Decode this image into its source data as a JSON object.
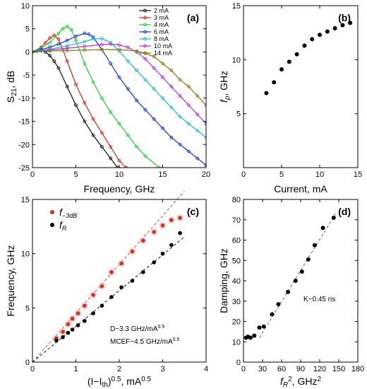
{
  "chart_data": [
    {
      "id": "a",
      "type": "line",
      "panel_label": "(a)",
      "xlabel": "Frequency, GHz",
      "ylabel": "S",
      "ylabel_sub": "21",
      "ylabel_tail": ", dB",
      "xlim": [
        0,
        20
      ],
      "ylim": [
        -25,
        10
      ],
      "xticks": [
        0,
        5,
        10,
        15,
        20
      ],
      "yticks": [
        -25,
        -20,
        -15,
        -10,
        -5,
        0,
        5,
        10
      ],
      "legend_position": "top-right",
      "series": [
        {
          "name": "2 mA",
          "color": "#1a1a1a",
          "x": [
            0,
            0.5,
            1,
            1.5,
            2,
            2.5,
            3,
            4,
            5,
            6,
            7,
            8,
            9,
            9.8
          ],
          "y": [
            0,
            0.2,
            0.3,
            0,
            -0.8,
            -2,
            -3.5,
            -7.5,
            -11.5,
            -15,
            -18,
            -20.5,
            -23,
            -25
          ]
        },
        {
          "name": "3 mA",
          "color": "#c0392b",
          "x": [
            0,
            1,
            1.5,
            2,
            2.5,
            3,
            3.5,
            4,
            5,
            6,
            7,
            8,
            9,
            10,
            10.8
          ],
          "y": [
            0,
            1,
            2,
            3,
            3.6,
            2.8,
            0.5,
            -2,
            -7,
            -11,
            -14.5,
            -17.5,
            -20.5,
            -23.5,
            -25
          ]
        },
        {
          "name": "4 mA",
          "color": "#2ecc40",
          "x": [
            0,
            1,
            2,
            3,
            3.5,
            4,
            4.5,
            5,
            6,
            7,
            8,
            9,
            10,
            11,
            12,
            13,
            14.6
          ],
          "y": [
            0,
            0.8,
            2,
            4,
            5,
            5.5,
            4.8,
            2.5,
            -2.5,
            -6.5,
            -10,
            -13,
            -15.5,
            -18,
            -20.5,
            -22.5,
            -25
          ]
        },
        {
          "name": "6 mA",
          "color": "#1f3fbf",
          "x": [
            0,
            1,
            2,
            3,
            4,
            5,
            6,
            6.5,
            7,
            8,
            9,
            10,
            11,
            12,
            13,
            14,
            15,
            16,
            17,
            18,
            19,
            20
          ],
          "y": [
            0,
            0.5,
            1,
            1.7,
            2.5,
            3.4,
            4,
            3.8,
            3.2,
            0.5,
            -2.5,
            -5.5,
            -8,
            -10.5,
            -12.5,
            -14.5,
            -16.5,
            -18.5,
            -20,
            -21.5,
            -23,
            -24.5
          ]
        },
        {
          "name": "8 mA",
          "color": "#2bb7d6",
          "x": [
            0,
            2,
            4,
            6,
            7,
            8,
            9,
            10,
            11,
            12,
            13,
            14,
            15,
            16,
            17,
            18,
            19,
            20
          ],
          "y": [
            0,
            0.6,
            1.3,
            2.2,
            2.8,
            2.9,
            2,
            0.2,
            -2,
            -4,
            -6,
            -8,
            -10,
            -12,
            -14,
            -15.5,
            -17,
            -18.5
          ]
        },
        {
          "name": "10 mA",
          "color": "#b23bd6",
          "x": [
            0,
            2,
            4,
            6,
            8,
            9,
            10,
            11,
            12,
            13,
            14,
            15,
            16,
            17,
            18,
            19,
            20
          ],
          "y": [
            0,
            0.4,
            0.8,
            1.2,
            1.6,
            1.7,
            1.5,
            1,
            0,
            -1.5,
            -3.5,
            -5.5,
            -7.5,
            -9.5,
            -11.5,
            -13.5,
            -15.5
          ]
        },
        {
          "name": "14 mA",
          "color": "#8a7a1a",
          "x": [
            0,
            2,
            4,
            6,
            8,
            10,
            12,
            13,
            14,
            15,
            16,
            17,
            18,
            19,
            20
          ],
          "y": [
            0,
            0.2,
            0.3,
            0.4,
            0.5,
            0.5,
            0.2,
            -0.3,
            -1,
            -2.5,
            -4,
            -6,
            -7.5,
            -9.5,
            -11.5
          ]
        }
      ]
    },
    {
      "id": "b",
      "type": "scatter",
      "panel_label": "(b)",
      "xlabel": "Current, mA",
      "ylabel": "f",
      "ylabel_sub": "p",
      "ylabel_tail": ", GHz",
      "xlim": [
        0,
        15
      ],
      "ylim": [
        0,
        15
      ],
      "xticks": [
        0,
        5,
        10,
        15
      ],
      "yticks": [
        5,
        10,
        15
      ],
      "series": [
        {
          "name": "",
          "color": "#000000",
          "x": [
            3,
            4,
            5,
            6,
            7,
            8,
            9,
            10,
            11,
            12,
            13,
            14
          ],
          "y": [
            6.9,
            7.9,
            9.1,
            9.8,
            10.5,
            11.3,
            11.9,
            12.3,
            12.6,
            12.9,
            13.2,
            13.4
          ]
        }
      ]
    },
    {
      "id": "c",
      "type": "scatter",
      "panel_label": "(c)",
      "xlabel": "(I−I",
      "xlabel_sub": "th",
      "xlabel_mid": ")",
      "xlabel_sup": "0.5",
      "xlabel_tail": ", mA",
      "xlabel_sup2": "0.5",
      "ylabel": "Frequency, GHz",
      "xlim": [
        0,
        4
      ],
      "ylim": [
        0,
        15
      ],
      "xticks": [
        0,
        1,
        2,
        3,
        4
      ],
      "yticks": [
        0,
        5,
        10,
        15
      ],
      "legend_position": "top-left",
      "annotations": [
        {
          "text": "D~3.3 GHz/mA",
          "sup": "0.5"
        },
        {
          "text": "MCEF~4.5 GHz/mA",
          "sup": "0.5"
        }
      ],
      "series": [
        {
          "name": "f",
          "name_sub": "−3dB",
          "color": "#c0392b",
          "fit_slope": 4.5,
          "x": [
            0.55,
            0.7,
            0.82,
            0.92,
            1.05,
            1.2,
            1.4,
            1.6,
            1.82,
            2.05,
            2.3,
            2.55,
            2.8,
            3.0,
            3.2,
            3.4
          ],
          "y": [
            2.2,
            2.8,
            3.5,
            4.0,
            4.5,
            5.2,
            6.2,
            7.0,
            8.3,
            9.1,
            10.2,
            11.2,
            12.0,
            12.6,
            13.1,
            13.3
          ]
        },
        {
          "name": "f",
          "name_sub": "R",
          "color": "#000000",
          "fit_slope": 3.3,
          "x": [
            0.55,
            0.7,
            0.82,
            0.92,
            1.05,
            1.2,
            1.4,
            1.6,
            1.82,
            2.05,
            2.3,
            2.55,
            2.8,
            3.0,
            3.2,
            3.4
          ],
          "y": [
            2.0,
            2.3,
            2.7,
            3.0,
            3.4,
            3.8,
            4.5,
            5.2,
            6.0,
            6.9,
            7.5,
            8.3,
            9.2,
            10.0,
            10.8,
            11.9
          ]
        }
      ]
    },
    {
      "id": "d",
      "type": "scatter",
      "panel_label": "(d)",
      "xlabel": "f",
      "xlabel_sub": "R",
      "xlabel_sup": "2",
      "xlabel_tail": ", GHz",
      "xlabel_sup2": "2",
      "ylabel": "Damping, GHz",
      "xlim": [
        0,
        180
      ],
      "ylim": [
        0,
        80
      ],
      "xticks": [
        0,
        30,
        60,
        90,
        120,
        150,
        180
      ],
      "yticks": [
        0,
        10,
        20,
        30,
        40,
        50,
        60,
        70,
        80
      ],
      "annotations": [
        {
          "text": "K~0.45 ns"
        }
      ],
      "fit_line": {
        "x": [
          25,
          145
        ],
        "y": [
          12,
          73
        ]
      },
      "series": [
        {
          "name": "",
          "color": "#000000",
          "x": [
            4,
            7,
            11,
            17,
            25,
            32,
            45,
            55,
            70,
            82,
            92,
            102,
            112,
            125,
            142
          ],
          "y": [
            12,
            12.5,
            12,
            13,
            17,
            17.5,
            23.5,
            28.5,
            34.5,
            40,
            44.5,
            50.5,
            57.5,
            66,
            71
          ]
        }
      ]
    }
  ]
}
